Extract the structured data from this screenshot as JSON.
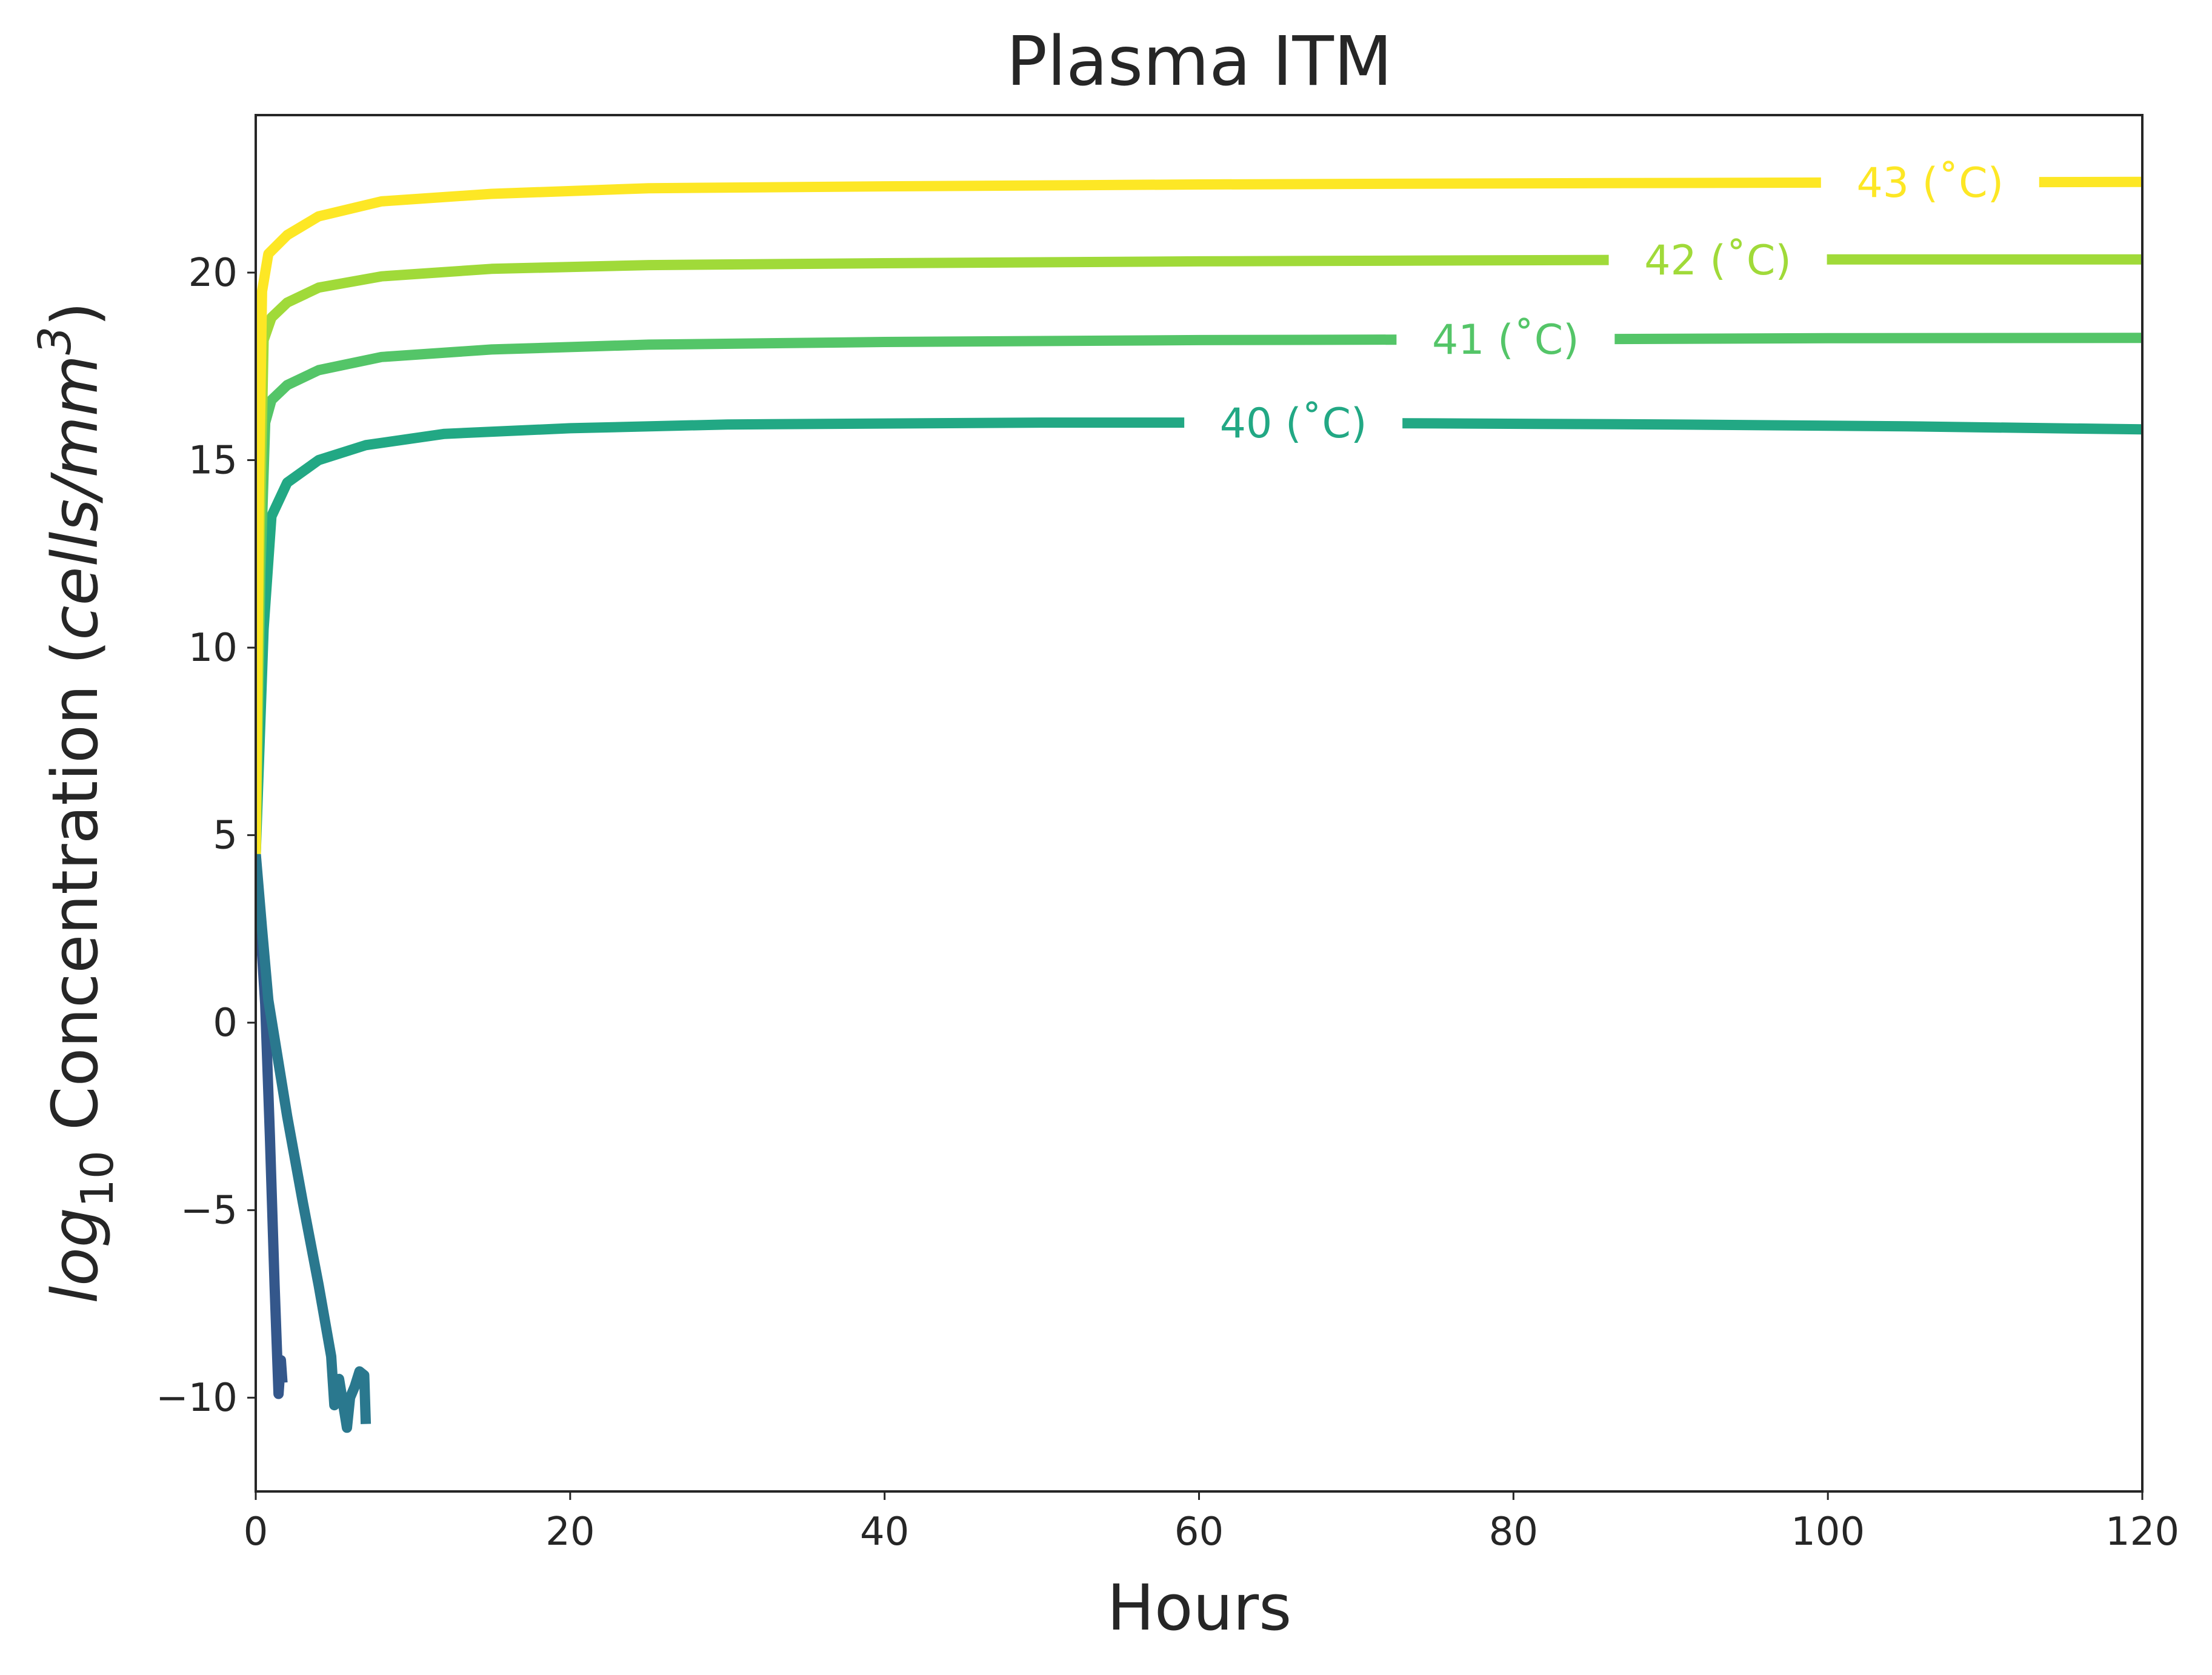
{
  "chart_data": {
    "type": "line",
    "title": "Plasma ITM",
    "xlabel": "Hours",
    "ylabel": {
      "main": "log",
      "subscript": "10",
      "middle": " Concentration (",
      "unit": "cells/mm",
      "superscript": "3",
      "end": ")"
    },
    "xlim": [
      0,
      120
    ],
    "ylim": [
      -12.5,
      24.2
    ],
    "xticks": [
      0,
      20,
      40,
      60,
      80,
      100,
      120
    ],
    "xtick_labels": [
      "0",
      "20",
      "40",
      "60",
      "80",
      "100",
      "120"
    ],
    "yticks": [
      -10,
      -5,
      0,
      5,
      10,
      15,
      20
    ],
    "ytick_labels": [
      "−10",
      "−5",
      "0",
      "5",
      "10",
      "15",
      "20"
    ],
    "grid": false,
    "series": [
      {
        "color": "#34578b",
        "points": [
          [
            0,
            4.3
          ],
          [
            0.3,
            2.5
          ],
          [
            0.6,
            0.5
          ],
          [
            0.9,
            -3.0
          ],
          [
            1.2,
            -7.0
          ],
          [
            1.45,
            -9.9
          ],
          [
            1.6,
            -9.0
          ],
          [
            1.7,
            -9.6
          ]
        ]
      },
      {
        "color": "#2a788e",
        "points": [
          [
            0,
            4.5
          ],
          [
            0.4,
            2.5
          ],
          [
            0.8,
            0.6
          ],
          [
            2.0,
            -2.5
          ],
          [
            3.0,
            -4.8
          ],
          [
            4.0,
            -7.0
          ],
          [
            4.8,
            -8.9
          ],
          [
            5.0,
            -10.2
          ],
          [
            5.3,
            -9.5
          ],
          [
            5.8,
            -10.8
          ],
          [
            6.0,
            -10.0
          ],
          [
            6.3,
            -9.7
          ],
          [
            6.6,
            -9.3
          ],
          [
            6.9,
            -9.4
          ],
          [
            7.0,
            -10.7
          ]
        ]
      },
      {
        "label": "40 (∘C)",
        "label_text": "40 (˚C)",
        "label_x": 66,
        "color": "#22a884",
        "points": [
          [
            0,
            4.5
          ],
          [
            0.5,
            10.5
          ],
          [
            1.0,
            13.5
          ],
          [
            2,
            14.4
          ],
          [
            4,
            15.0
          ],
          [
            7,
            15.4
          ],
          [
            12,
            15.7
          ],
          [
            20,
            15.85
          ],
          [
            30,
            15.95
          ],
          [
            50,
            16.0
          ],
          [
            60,
            16.0
          ],
          [
            75,
            15.98
          ],
          [
            90,
            15.95
          ],
          [
            105,
            15.9
          ],
          [
            120,
            15.82
          ]
        ]
      },
      {
        "label": "41 (∘C)",
        "label_text": "41 (˚C)",
        "label_x": 79.5,
        "color": "#54c568",
        "points": [
          [
            0,
            4.5
          ],
          [
            0.3,
            12.0
          ],
          [
            0.6,
            16.0
          ],
          [
            1.0,
            16.6
          ],
          [
            2,
            17.0
          ],
          [
            4,
            17.4
          ],
          [
            8,
            17.75
          ],
          [
            15,
            17.95
          ],
          [
            25,
            18.08
          ],
          [
            40,
            18.15
          ],
          [
            60,
            18.2
          ],
          [
            80,
            18.22
          ],
          [
            100,
            18.25
          ],
          [
            120,
            18.26
          ]
        ]
      },
      {
        "label": "42 (∘C)",
        "label_text": "42 (˚C)",
        "label_x": 93,
        "color": "#a0da39",
        "points": [
          [
            0,
            4.5
          ],
          [
            0.25,
            13.0
          ],
          [
            0.5,
            18.2
          ],
          [
            1.0,
            18.8
          ],
          [
            2,
            19.2
          ],
          [
            4,
            19.6
          ],
          [
            8,
            19.9
          ],
          [
            15,
            20.1
          ],
          [
            25,
            20.2
          ],
          [
            40,
            20.25
          ],
          [
            60,
            20.3
          ],
          [
            80,
            20.33
          ],
          [
            100,
            20.35
          ],
          [
            120,
            20.35
          ]
        ]
      },
      {
        "label": "43 (∘C)",
        "label_text": "43 (˚C)",
        "label_x": 106.5,
        "color": "#fde725",
        "points": [
          [
            0,
            4.5
          ],
          [
            0.2,
            14.0
          ],
          [
            0.4,
            19.5
          ],
          [
            0.8,
            20.5
          ],
          [
            2,
            21.0
          ],
          [
            4,
            21.5
          ],
          [
            8,
            21.9
          ],
          [
            15,
            22.1
          ],
          [
            25,
            22.25
          ],
          [
            40,
            22.3
          ],
          [
            60,
            22.35
          ],
          [
            80,
            22.38
          ],
          [
            100,
            22.4
          ],
          [
            120,
            22.42
          ]
        ]
      }
    ]
  }
}
